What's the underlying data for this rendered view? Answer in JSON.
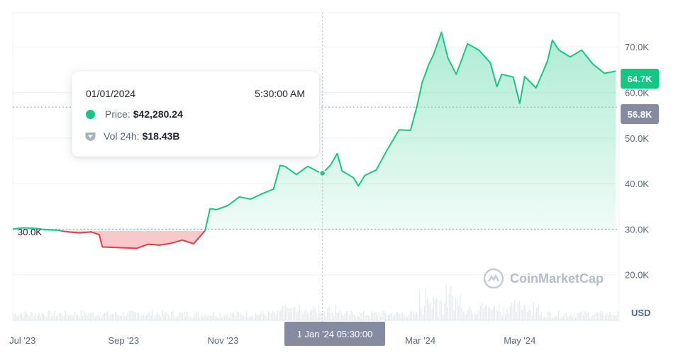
{
  "tooltip": {
    "date": "01/01/2024",
    "time": "5:30:00 AM",
    "price_label": "Price:",
    "price_value": "$42,280.24",
    "volume_label": "Vol 24h:",
    "volume_value": "$18.43B"
  },
  "badges": {
    "current_price": "64.7K",
    "reference_price": "56.8K"
  },
  "crosshair_label": "1 Jan '24 05:30:00",
  "reference_line_label": "30.0K",
  "watermark": "CoinMarketCap",
  "colors": {
    "up": "#16c784",
    "down": "#ea3943",
    "badge_gray": "#858ca2",
    "grid": "#eff2f5"
  },
  "chart_data": {
    "type": "area",
    "baseline": 30000,
    "ylim": [
      10000,
      77500
    ],
    "y_ticks": [
      {
        "value": 20000,
        "label": "20.0K"
      },
      {
        "value": 30000,
        "label": "30.0K"
      },
      {
        "value": 40000,
        "label": "40.0K"
      },
      {
        "value": 50000,
        "label": "50.0K"
      },
      {
        "value": 60000,
        "label": "60.0K"
      },
      {
        "value": 70000,
        "label": "70.0K"
      }
    ],
    "y_unit_label": "USD",
    "x_range": [
      "2023-06-25",
      "2024-07-01"
    ],
    "x_ticks": [
      {
        "date": "2023-07-01",
        "label": "Jul '23"
      },
      {
        "date": "2023-09-01",
        "label": "Sep '23"
      },
      {
        "date": "2023-11-01",
        "label": "Nov '23"
      },
      {
        "date": "2024-03-01",
        "label": "Mar '24"
      },
      {
        "date": "2024-05-01",
        "label": "May '24"
      }
    ],
    "hover_point": {
      "date": "2024-01-01",
      "value": 42280.24
    },
    "series": [
      {
        "x": [
          "2023-06-25",
          "2023-07-01",
          "2023-07-08",
          "2023-07-15",
          "2023-07-22",
          "2023-07-29",
          "2023-08-05",
          "2023-08-12",
          "2023-08-17",
          "2023-08-19",
          "2023-08-26",
          "2023-09-02",
          "2023-09-09",
          "2023-09-16",
          "2023-09-23",
          "2023-09-30",
          "2023-10-07",
          "2023-10-14",
          "2023-10-21",
          "2023-10-24",
          "2023-10-28",
          "2023-11-04",
          "2023-11-11",
          "2023-11-18",
          "2023-11-25",
          "2023-12-02",
          "2023-12-06",
          "2023-12-09",
          "2023-12-16",
          "2023-12-23",
          "2023-12-30",
          "2024-01-01",
          "2024-01-06",
          "2024-01-10",
          "2024-01-13",
          "2024-01-20",
          "2024-01-23",
          "2024-01-27",
          "2024-02-03",
          "2024-02-10",
          "2024-02-17",
          "2024-02-24",
          "2024-02-28",
          "2024-03-02",
          "2024-03-06",
          "2024-03-09",
          "2024-03-14",
          "2024-03-18",
          "2024-03-23",
          "2024-03-30",
          "2024-04-06",
          "2024-04-13",
          "2024-04-17",
          "2024-04-20",
          "2024-04-27",
          "2024-05-01",
          "2024-05-04",
          "2024-05-11",
          "2024-05-18",
          "2024-05-21",
          "2024-05-25",
          "2024-06-01",
          "2024-06-08",
          "2024-06-15",
          "2024-06-22",
          "2024-06-29"
        ],
        "values": [
          30000,
          30300,
          30200,
          29900,
          29800,
          29400,
          29200,
          29400,
          28800,
          26100,
          26000,
          25900,
          25800,
          26700,
          26500,
          26900,
          27600,
          26800,
          29700,
          34500,
          34300,
          35200,
          37100,
          36600,
          37800,
          38800,
          44000,
          43800,
          42000,
          43800,
          42500,
          42280,
          44100,
          46600,
          42800,
          41300,
          39500,
          41800,
          43000,
          47600,
          51800,
          51700,
          57000,
          62000,
          66000,
          68200,
          73200,
          67500,
          64000,
          70700,
          69300,
          66500,
          61300,
          64000,
          63400,
          57600,
          63500,
          61000,
          66900,
          71500,
          69300,
          67800,
          69300,
          66200,
          64200,
          64700
        ]
      }
    ]
  }
}
